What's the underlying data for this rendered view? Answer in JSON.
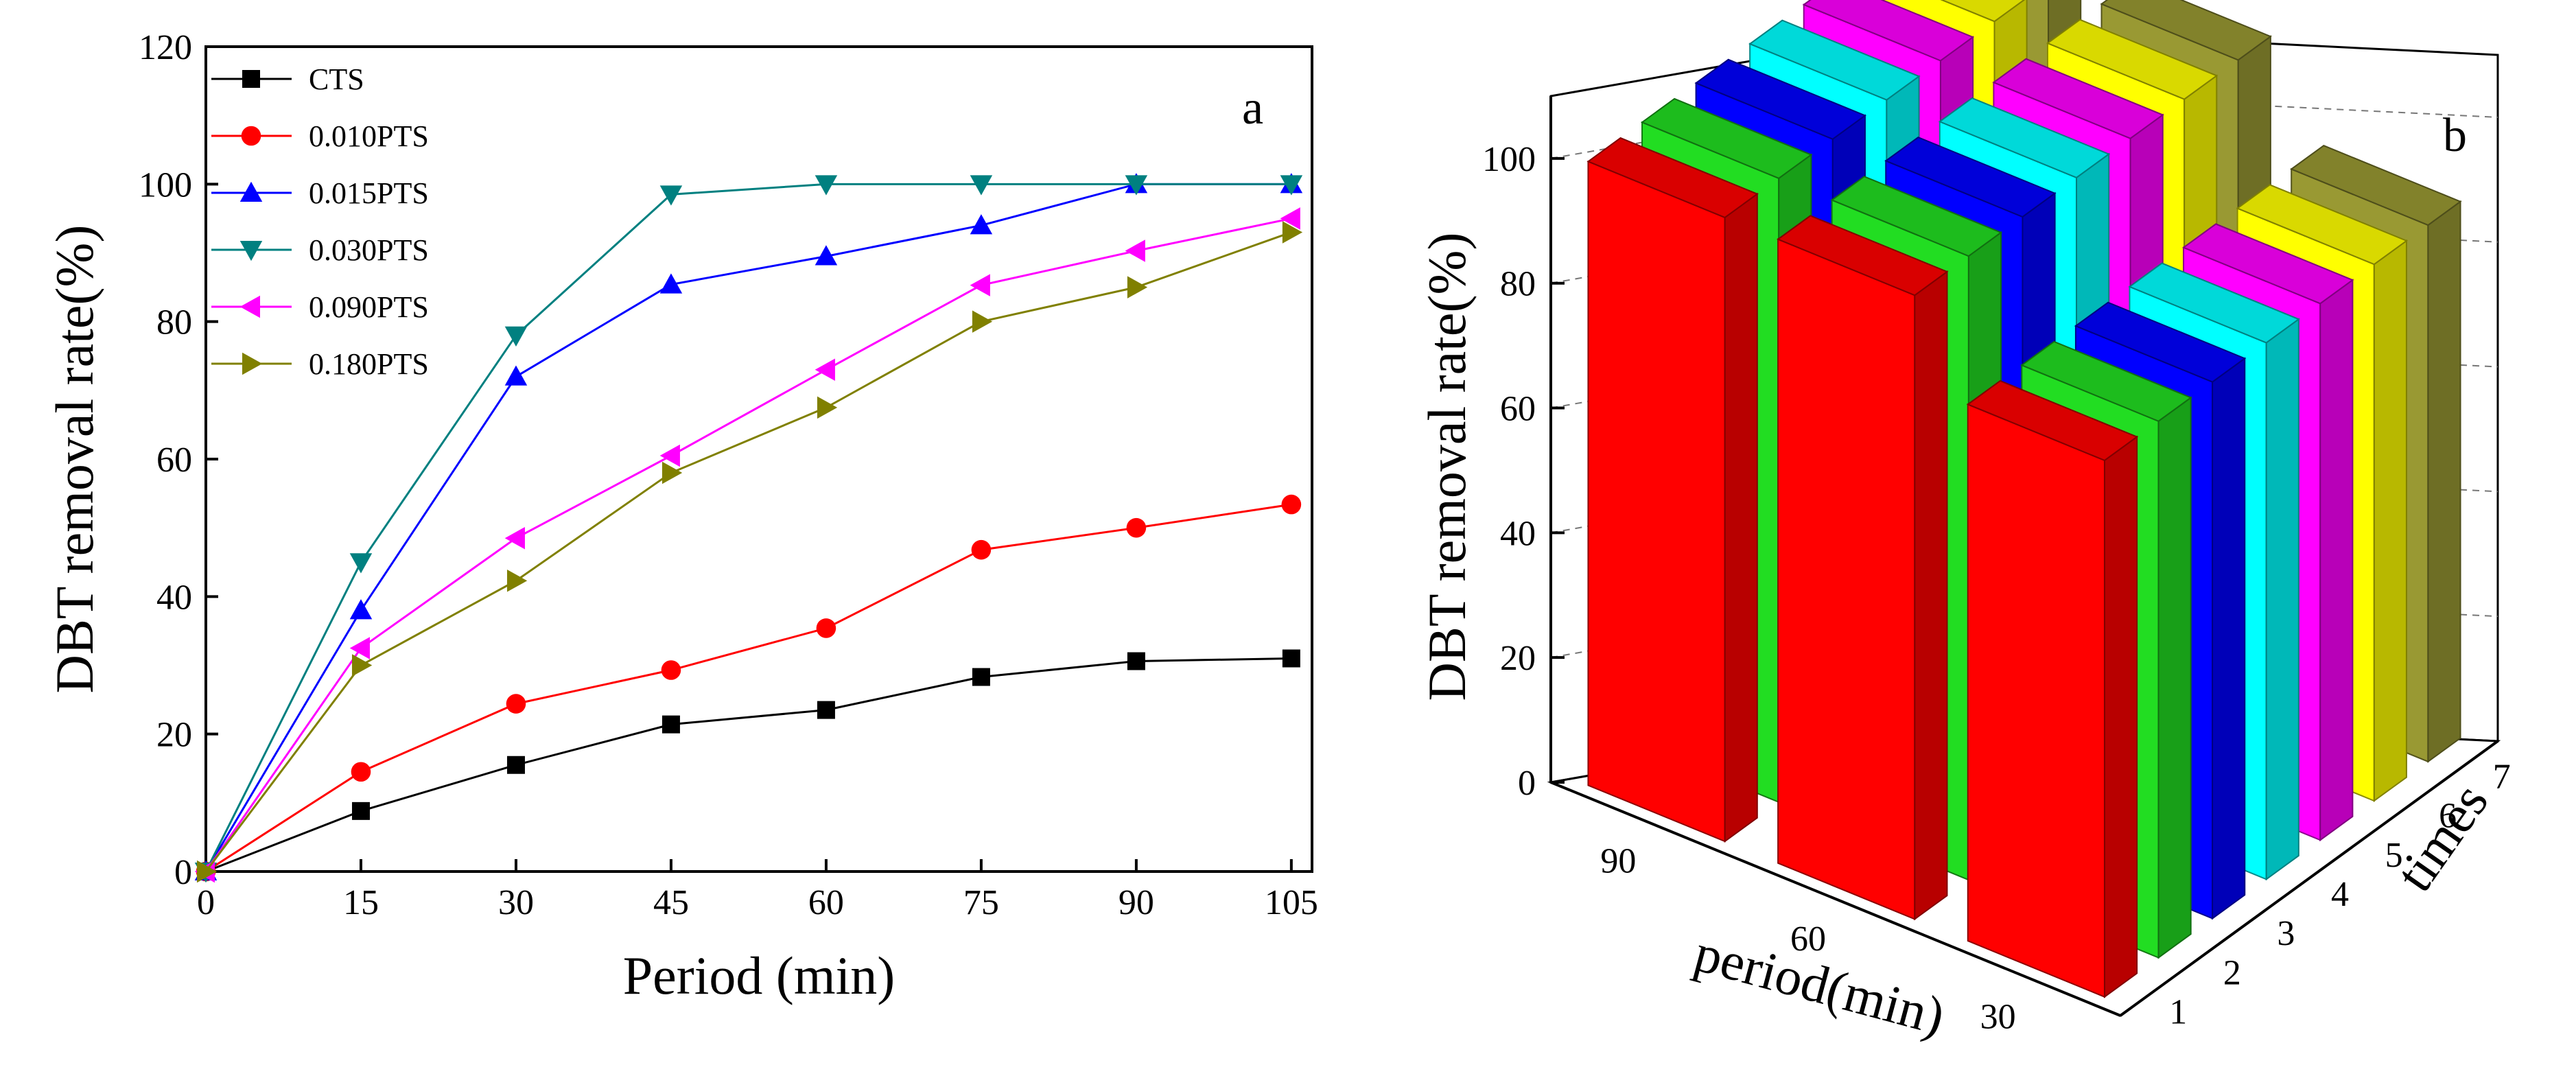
{
  "chart_data": [
    {
      "type": "line",
      "panel_label": "a",
      "xlabel": "Period (min)",
      "ylabel": "DBT removal rate(%)",
      "x": [
        0,
        15,
        30,
        45,
        60,
        75,
        90,
        105
      ],
      "xticks": [
        "0",
        "15",
        "30",
        "45",
        "60",
        "75",
        "90",
        "105"
      ],
      "xlim": [
        0,
        107
      ],
      "ylim": [
        0,
        120
      ],
      "yticks": [
        "0",
        "20",
        "40",
        "60",
        "80",
        "100",
        "120"
      ],
      "legend_position": "top-left",
      "series": [
        {
          "name": "CTS",
          "marker": "square",
          "color": "#000000",
          "values": [
            0,
            8.8,
            15.5,
            21.4,
            23.5,
            28.3,
            30.6,
            31.0
          ]
        },
        {
          "name": "0.010PTS",
          "marker": "circle",
          "color": "#ff0000",
          "values": [
            0,
            14.5,
            24.4,
            29.3,
            35.4,
            46.8,
            50.0,
            53.4
          ]
        },
        {
          "name": "0.015PTS",
          "marker": "triangle-up",
          "color": "#0000ff",
          "values": [
            0,
            38.0,
            72.0,
            85.4,
            89.5,
            94.0,
            100.0,
            100.0
          ]
        },
        {
          "name": "0.030PTS",
          "marker": "triangle-down",
          "color": "#008080",
          "values": [
            0,
            45.0,
            78.0,
            98.5,
            100.0,
            100.0,
            100.0,
            100.0
          ]
        },
        {
          "name": "0.090PTS",
          "marker": "triangle-left",
          "color": "#ff00ff",
          "values": [
            0,
            32.5,
            48.5,
            60.5,
            73.0,
            85.3,
            90.3,
            95.0
          ]
        },
        {
          "name": "0.180PTS",
          "marker": "triangle-right",
          "color": "#808000",
          "values": [
            0,
            30.0,
            42.3,
            58.0,
            67.5,
            80.0,
            85.0,
            93.0
          ]
        }
      ]
    },
    {
      "type": "bar3d",
      "panel_label": "b",
      "zlabel": "DBT removal rate(%)",
      "xlabel": "period(min)",
      "ylabel": "times",
      "zticks": [
        "0",
        "20",
        "40",
        "60",
        "80",
        "100"
      ],
      "zlim": [
        0,
        110
      ],
      "periods": [
        "90",
        "60",
        "30"
      ],
      "times": [
        "1",
        "2",
        "3",
        "4",
        "5",
        "6",
        "7"
      ],
      "colors": [
        "#ff0000",
        "#22dd22",
        "#0000ff",
        "#00ffff",
        "#ff00ff",
        "#ffff00",
        "#999933"
      ],
      "values": [
        [
          100,
          100,
          100,
          100,
          100,
          100,
          100
        ],
        [
          100,
          100,
          100,
          100,
          100,
          100,
          100
        ],
        [
          86,
          86,
          86,
          86,
          86,
          86,
          86
        ]
      ]
    }
  ]
}
